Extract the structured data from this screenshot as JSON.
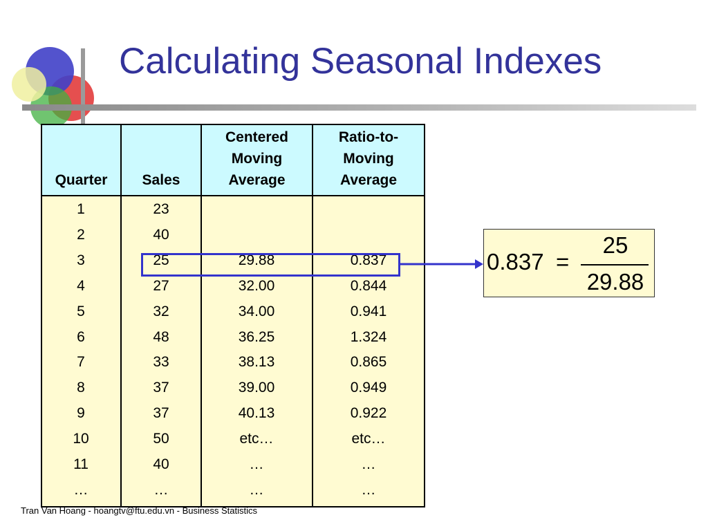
{
  "slide": {
    "title": "Calculating Seasonal Indexes",
    "footer": "Tran Van Hoang - hoangtv@ftu.edu.vn - Business Statistics",
    "logo_icon": "overlapping-circles-logo"
  },
  "table": {
    "headers": [
      "Quarter",
      "Sales",
      "Centered\nMoving\nAverage",
      "Ratio-to-\nMoving\nAverage"
    ],
    "rows": [
      [
        "1",
        "23",
        "",
        ""
      ],
      [
        "2",
        "40",
        "",
        ""
      ],
      [
        "3",
        "25",
        "29.88",
        "0.837"
      ],
      [
        "4",
        "27",
        "32.00",
        "0.844"
      ],
      [
        "5",
        "32",
        "34.00",
        "0.941"
      ],
      [
        "6",
        "48",
        "36.25",
        "1.324"
      ],
      [
        "7",
        "33",
        "38.13",
        "0.865"
      ],
      [
        "8",
        "37",
        "39.00",
        "0.949"
      ],
      [
        "9",
        "37",
        "40.13",
        "0.922"
      ],
      [
        "10",
        "50",
        "etc…",
        "etc…"
      ],
      [
        "11",
        "40",
        "…",
        "…"
      ],
      [
        "…",
        "…",
        "…",
        "…"
      ]
    ],
    "highlighted_row": 2,
    "colors": {
      "header_bg": "#ccfaff",
      "body_bg": "#fffbd2",
      "highlight": "#3333cc"
    }
  },
  "formula": {
    "lhs": "0.837",
    "equals": "=",
    "numerator": "25",
    "denominator": "29.88"
  }
}
